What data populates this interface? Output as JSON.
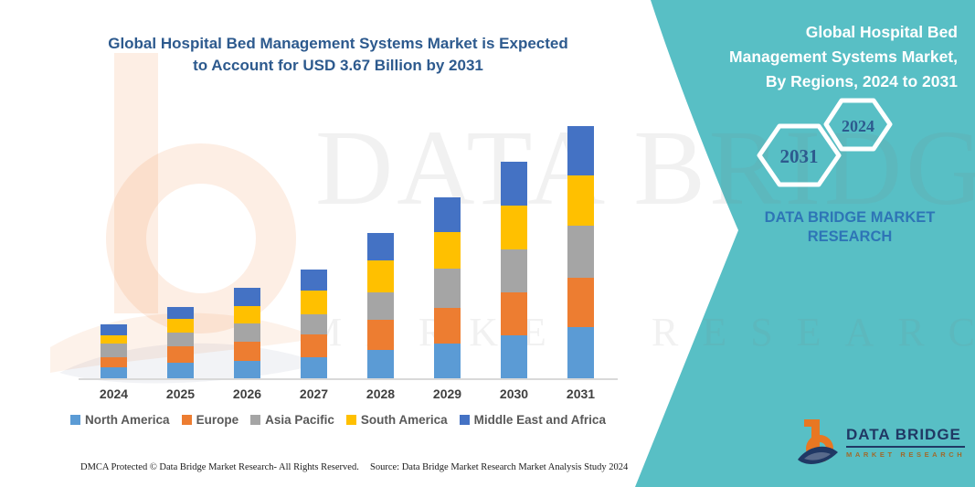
{
  "colors": {
    "teal_panel": "#58bfc5",
    "title_blue": "#2d5a8e",
    "dbmr_blue": "#2e75b6",
    "logo_navy": "#203864",
    "logo_orange": "#e87722"
  },
  "main_title": {
    "lines": [
      "Global Hospital Bed Management Systems Market is Expected",
      "to Account for USD 3.67 Billion by 2031"
    ]
  },
  "right_panel": {
    "title_lines": [
      "Global Hospital Bed",
      "Management Systems Market,",
      "By Regions, 2024 to 2031"
    ],
    "hexagon_large_label": "2031",
    "hexagon_small_label": "2024",
    "brand_lines": [
      "DATA BRIDGE MARKET",
      "RESEARCH"
    ]
  },
  "watermark": {
    "line1": "DATA BRIDGE",
    "line2": "MARKET RESEARCH"
  },
  "chart_data": {
    "type": "bar",
    "stacked": true,
    "title": "Global Hospital Bed Management Systems Market is Expected to Account for USD 3.67 Billion by 2031",
    "unit": "USD billion",
    "xlabel": "",
    "ylabel": "",
    "y_axis_visible": false,
    "grid": false,
    "legend_position": "bottom",
    "ylim": [
      0,
      3.8
    ],
    "categories": [
      "2024",
      "2025",
      "2026",
      "2027",
      "2028",
      "2029",
      "2030",
      "2031"
    ],
    "series": [
      {
        "name": "North America",
        "color": "#5B9BD5",
        "values": [
          0.16,
          0.23,
          0.25,
          0.31,
          0.41,
          0.51,
          0.63,
          0.74
        ]
      },
      {
        "name": "Europe",
        "color": "#ED7D31",
        "values": [
          0.15,
          0.24,
          0.28,
          0.33,
          0.44,
          0.52,
          0.62,
          0.73
        ]
      },
      {
        "name": "Asia Pacific",
        "color": "#A5A5A5",
        "values": [
          0.2,
          0.2,
          0.27,
          0.29,
          0.4,
          0.56,
          0.63,
          0.75
        ]
      },
      {
        "name": "South America",
        "color": "#FFC000",
        "values": [
          0.12,
          0.2,
          0.25,
          0.35,
          0.47,
          0.54,
          0.63,
          0.73
        ]
      },
      {
        "name": "Middle East and Africa",
        "color": "#4472C4",
        "values": [
          0.16,
          0.17,
          0.26,
          0.31,
          0.39,
          0.5,
          0.64,
          0.72
        ]
      }
    ],
    "totals": [
      0.79,
      1.04,
      1.31,
      1.59,
      2.11,
      2.63,
      3.15,
      3.67
    ],
    "final_year_total_label": "USD 3.67 Billion by 2031"
  },
  "logo": {
    "name_text": "DATA BRIDGE",
    "sub_text": "MARKET RESEARCH"
  },
  "footer": {
    "left": "DMCA Protected © Data Bridge Market Research-  All Rights Reserved.",
    "source": "Source: Data Bridge Market Research  Market Analysis Study 2024"
  }
}
